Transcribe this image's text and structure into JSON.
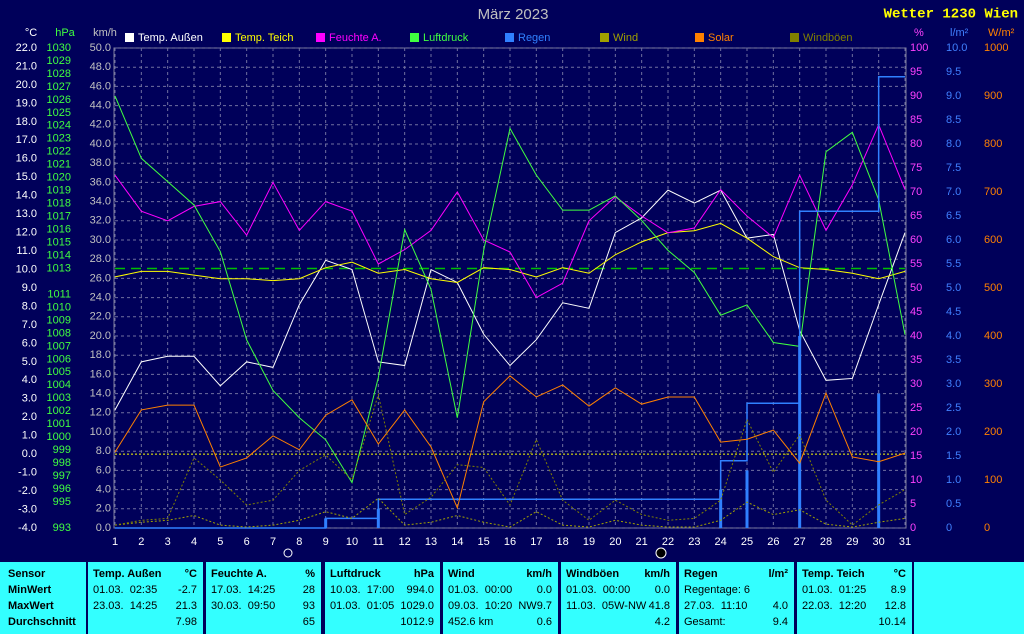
{
  "chart_data": {
    "type": "line",
    "title": "März 2023",
    "brand": "Wetter 1230 Wien",
    "x": [
      1,
      2,
      3,
      4,
      5,
      6,
      7,
      8,
      9,
      10,
      11,
      12,
      13,
      14,
      15,
      16,
      17,
      18,
      19,
      20,
      21,
      22,
      23,
      24,
      25,
      26,
      27,
      28,
      29,
      30,
      31
    ],
    "xlim": [
      1,
      31
    ],
    "xticks": [
      1,
      2,
      3,
      4,
      5,
      6,
      7,
      8,
      9,
      10,
      11,
      12,
      13,
      14,
      15,
      16,
      17,
      18,
      19,
      20,
      21,
      22,
      23,
      24,
      25,
      26,
      27,
      28,
      29,
      30,
      31
    ],
    "grid": true,
    "grid_axis": "kmh",
    "axes": [
      {
        "id": "C",
        "label": "°C",
        "side": "left",
        "color": "#ffffff",
        "lim": [
          -4,
          22
        ],
        "ticks": [
          {
            "value": 22,
            "label": "22.0"
          },
          {
            "value": 21,
            "label": "21.0"
          },
          {
            "value": 20,
            "label": "20.0"
          },
          {
            "value": 19,
            "label": "19.0"
          },
          {
            "value": 18,
            "label": "18.0"
          },
          {
            "value": 17,
            "label": "17.0"
          },
          {
            "value": 16,
            "label": "16.0"
          },
          {
            "value": 15,
            "label": "15.0"
          },
          {
            "value": 14,
            "label": "14.0"
          },
          {
            "value": 13,
            "label": "13.0"
          },
          {
            "value": 12,
            "label": "12.0"
          },
          {
            "value": 11,
            "label": "11.0"
          },
          {
            "value": 10,
            "label": "10.0"
          },
          {
            "value": 9,
            "label": "9.0"
          },
          {
            "value": 8,
            "label": "8.0"
          },
          {
            "value": 7,
            "label": "7.0"
          },
          {
            "value": 6,
            "label": "6.0"
          },
          {
            "value": 5,
            "label": "5.0"
          },
          {
            "value": 4,
            "label": "4.0"
          },
          {
            "value": 3,
            "label": "3.0"
          },
          {
            "value": 2,
            "label": "2.0"
          },
          {
            "value": 1,
            "label": "1.0"
          },
          {
            "value": 0,
            "label": "0.0"
          },
          {
            "value": -1,
            "label": "-1.0"
          },
          {
            "value": -2,
            "label": "-2.0"
          },
          {
            "value": -3,
            "label": "-3.0"
          },
          {
            "value": -4,
            "label": "-4.0"
          }
        ]
      },
      {
        "id": "hPa",
        "label": "hPa",
        "side": "left",
        "color": "#40ff40",
        "lim": [
          993,
          1030
        ],
        "ticks": [
          1030,
          1029,
          1028,
          1027,
          1026,
          1025,
          1024,
          1023,
          1022,
          1021,
          1020,
          1019,
          1018,
          1017,
          1016,
          1015,
          1014,
          1013,
          1011,
          1010,
          1009,
          1008,
          1007,
          1006,
          1005,
          1004,
          1003,
          1002,
          1001,
          1000,
          999,
          998,
          997,
          996,
          995,
          993
        ]
      },
      {
        "id": "kmh",
        "label": "km/h",
        "side": "left",
        "color": "#c0c0c0",
        "lim": [
          0,
          50
        ],
        "ticks": [
          {
            "value": 50,
            "label": "50.0"
          },
          {
            "value": 48,
            "label": "48.0"
          },
          {
            "value": 46,
            "label": "46.0"
          },
          {
            "value": 44,
            "label": "44.0"
          },
          {
            "value": 42,
            "label": "42.0"
          },
          {
            "value": 40,
            "label": "40.0"
          },
          {
            "value": 38,
            "label": "38.0"
          },
          {
            "value": 36,
            "label": "36.0"
          },
          {
            "value": 34,
            "label": "34.0"
          },
          {
            "value": 32,
            "label": "32.0"
          },
          {
            "value": 30,
            "label": "30.0"
          },
          {
            "value": 28,
            "label": "28.0"
          },
          {
            "value": 26,
            "label": "26.0"
          },
          {
            "value": 24,
            "label": "24.0"
          },
          {
            "value": 22,
            "label": "22.0"
          },
          {
            "value": 20,
            "label": "20.0"
          },
          {
            "value": 18,
            "label": "18.0"
          },
          {
            "value": 16,
            "label": "16.0"
          },
          {
            "value": 14,
            "label": "14.0"
          },
          {
            "value": 12,
            "label": "12.0"
          },
          {
            "value": 10,
            "label": "10.0"
          },
          {
            "value": 8,
            "label": "8.0"
          },
          {
            "value": 6,
            "label": "6.0"
          },
          {
            "value": 4,
            "label": "4.0"
          },
          {
            "value": 2,
            "label": "2.0"
          },
          {
            "value": 0,
            "label": "0.0"
          }
        ]
      },
      {
        "id": "pct",
        "label": "%",
        "side": "right",
        "color": "#ff40ff",
        "lim": [
          0,
          100
        ],
        "ticks": [
          100,
          95,
          90,
          85,
          80,
          75,
          70,
          65,
          60,
          55,
          50,
          45,
          40,
          35,
          30,
          25,
          20,
          15,
          10,
          5,
          0
        ]
      },
      {
        "id": "lm2",
        "label": "l/m²",
        "side": "right",
        "color": "#4080ff",
        "lim": [
          0,
          10
        ],
        "ticks": [
          {
            "value": 10,
            "label": "10.0"
          },
          9.5,
          {
            "value": 9,
            "label": "9.0"
          },
          8.5,
          {
            "value": 8,
            "label": "8.0"
          },
          7.5,
          {
            "value": 7,
            "label": "7.0"
          },
          6.5,
          {
            "value": 6,
            "label": "6.0"
          },
          5.5,
          {
            "value": 5,
            "label": "5.0"
          },
          4.5,
          {
            "value": 4,
            "label": "4.0"
          },
          3.5,
          {
            "value": 3,
            "label": "3.0"
          },
          2.5,
          {
            "value": 2,
            "label": "2.0"
          },
          1.5,
          {
            "value": 1,
            "label": "1.0"
          },
          0.5,
          0
        ]
      },
      {
        "id": "wm2",
        "label": "W/m²",
        "side": "right",
        "color": "#ff8000",
        "lim": [
          0,
          1000
        ],
        "ticks": [
          1000,
          900,
          800,
          700,
          600,
          500,
          400,
          300,
          200,
          100,
          0
        ]
      }
    ],
    "reference_lines": [
      {
        "axis": "hPa",
        "value": 1013,
        "color": "#00c000",
        "style": "dashed"
      },
      {
        "axis": "C",
        "value": 0,
        "color": "#ffff00",
        "style": "dotted"
      }
    ],
    "series": [
      {
        "name": "Temp. Außen",
        "color": "#ffffff",
        "axis": "C",
        "style": "line",
        "values": [
          2.4,
          5.0,
          5.3,
          5.3,
          3.7,
          5.0,
          4.7,
          8.1,
          10.5,
          10.0,
          5.0,
          4.8,
          10.0,
          9.3,
          6.5,
          4.8,
          6.2,
          8.2,
          7.9,
          12.0,
          12.8,
          14.3,
          13.6,
          14.3,
          11.7,
          11.9,
          6.7,
          4.0,
          4.1,
          8.1,
          12.0
        ]
      },
      {
        "name": "Temp. Teich",
        "color": "#ffff00",
        "axis": "C",
        "style": "line",
        "values": [
          9.6,
          9.9,
          9.9,
          9.7,
          9.5,
          9.5,
          9.4,
          9.5,
          10.1,
          10.4,
          9.8,
          10.0,
          9.5,
          9.3,
          10.1,
          10.0,
          9.6,
          10.1,
          9.8,
          10.8,
          11.5,
          12.0,
          12.1,
          12.5,
          11.7,
          10.7,
          10.1,
          10.0,
          9.8,
          9.5,
          9.9
        ]
      },
      {
        "name": "Feuchte A.",
        "color": "#ff00ff",
        "axis": "pct",
        "style": "line",
        "values": [
          73.5,
          66,
          64,
          67,
          68,
          61,
          72,
          62,
          68,
          66,
          55,
          58,
          62,
          70,
          60,
          57.5,
          48,
          51,
          64,
          69,
          65,
          61.5,
          62.5,
          70.5,
          65,
          60.5,
          73.5,
          62,
          71.5,
          84,
          70.5
        ]
      },
      {
        "name": "Luftdruck",
        "color": "#40ff40",
        "axis": "hPa",
        "style": "line",
        "values": [
          1026.3,
          1021.5,
          1019.7,
          1017.9,
          1014.3,
          1007.5,
          1003.6,
          1001.5,
          999.8,
          996.5,
          1004.6,
          1016.0,
          1011.4,
          1001.5,
          1014.4,
          1023.8,
          1020.2,
          1017.5,
          1017.5,
          1018.6,
          1016.7,
          1014.4,
          1012.7,
          1009.4,
          1010.2,
          1007.3,
          1007.0,
          1022.0,
          1023.5,
          1018.3,
          1007.9
        ]
      },
      {
        "name": "Regen",
        "color": "#3080ff",
        "axis": "lm2",
        "style": "bar",
        "values": [
          0,
          0,
          0,
          0,
          0,
          0,
          0,
          0,
          0.2,
          0,
          0.4,
          0,
          0,
          0,
          0,
          0,
          0,
          0,
          0,
          0,
          0,
          0,
          0,
          0.8,
          1.2,
          0,
          4.0,
          0,
          0,
          2.8,
          0
        ]
      },
      {
        "name": "Wind",
        "color": "#a0a000",
        "axis": "kmh",
        "style": "dotted",
        "values": [
          0.3,
          0.6,
          0.8,
          1.3,
          0.3,
          0.1,
          0.3,
          0.8,
          1.7,
          1.0,
          3.1,
          0.3,
          0.6,
          1.3,
          0.6,
          0.1,
          1.7,
          0.3,
          0.1,
          0.8,
          0.3,
          0.1,
          0.1,
          0.8,
          2.7,
          1.4,
          1.9,
          0.4,
          0.1,
          0.6,
          1.0
        ]
      },
      {
        "name": "Solar",
        "color": "#ff8000",
        "axis": "wm2",
        "style": "line",
        "values": [
          158,
          246,
          256,
          256,
          127,
          146,
          192,
          163,
          235,
          267,
          175,
          246,
          169,
          42,
          263,
          317,
          273,
          298,
          254,
          292,
          258,
          273,
          273,
          179,
          185,
          204,
          135,
          281,
          148,
          138,
          156
        ]
      },
      {
        "name": "Windböen",
        "color": "#808000",
        "axis": "kmh",
        "style": "dotted",
        "values": [
          0.3,
          0.8,
          1.0,
          7.3,
          5.0,
          2.4,
          2.9,
          6.0,
          7.6,
          5.0,
          13.9,
          1.4,
          3.2,
          6.6,
          6.3,
          2.4,
          9.2,
          2.9,
          0.8,
          2.9,
          1.4,
          0.8,
          1.0,
          2.9,
          11.3,
          5.8,
          9.7,
          2.9,
          0.3,
          2.4,
          4.0
        ]
      }
    ]
  },
  "table": {
    "row_labels": [
      "Sensor",
      "MinWert",
      "MaxWert",
      "Durchschnitt"
    ],
    "columns": [
      {
        "header": "Temp. Außen",
        "unit": "°C",
        "rows": [
          {
            "left": "01.03.  02:35",
            "right": "-2.7"
          },
          {
            "left": "23.03.  14:25",
            "right": "21.3"
          },
          {
            "right": "7.98"
          }
        ]
      },
      {
        "header": "Feuchte A.",
        "unit": "%",
        "rows": [
          {
            "left": "17.03.  14:25",
            "right": "28"
          },
          {
            "left": "30.03.  09:50",
            "right": "93"
          },
          {
            "right": "65"
          }
        ]
      },
      {
        "header": "Luftdruck",
        "unit": "hPa",
        "rows": [
          {
            "left": "10.03.  17:00",
            "right": "994.0"
          },
          {
            "left": "01.03.  01:05",
            "right": "1029.0"
          },
          {
            "right": "1012.9"
          }
        ]
      },
      {
        "header": "Wind",
        "unit": "km/h",
        "rows": [
          {
            "left": "01.03.  00:00",
            "right": "0.0"
          },
          {
            "left": "09.03.  10:20  NW",
            "right": "9.7"
          },
          {
            "left": "452.6 km",
            "right": "0.6"
          }
        ]
      },
      {
        "header": "Windböen",
        "unit": "km/h",
        "rows": [
          {
            "left": "01.03.  00:00",
            "right": "0.0"
          },
          {
            "left": "11.03.  05W-NW",
            "right": "41.8"
          },
          {
            "right": "4.2"
          }
        ]
      },
      {
        "header": "Regen",
        "unit": "l/m²",
        "rows": [
          {
            "left": "Regentage: 6"
          },
          {
            "left": "27.03.  11:10",
            "right": "4.0"
          },
          {
            "left": "Gesamt:",
            "right": "9.4"
          }
        ]
      },
      {
        "header": "Temp. Teich",
        "unit": "°C",
        "rows": [
          {
            "left": "01.03.  01:25",
            "right": "8.9"
          },
          {
            "left": "22.03.  12:20",
            "right": "12.8"
          },
          {
            "right": "10.14"
          }
        ]
      }
    ]
  }
}
